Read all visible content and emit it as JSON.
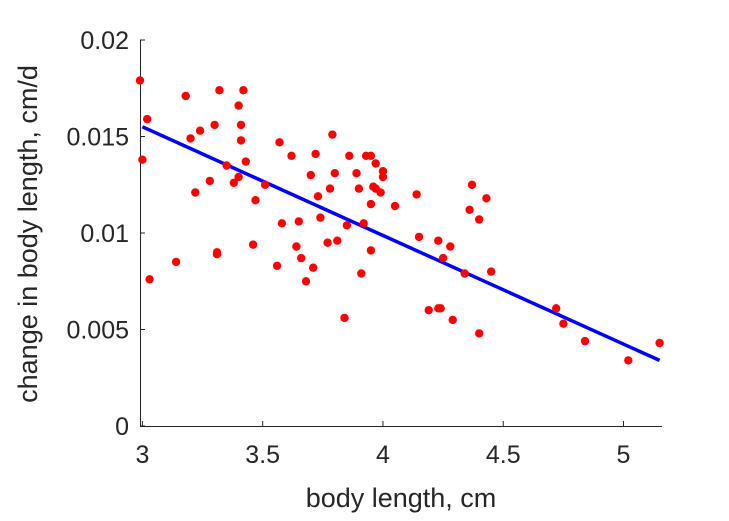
{
  "chart_data": {
    "type": "scatter",
    "title": "",
    "xlabel": "body length, cm",
    "ylabel": "change in body length, cm/d",
    "xlim": [
      2.99,
      5.16
    ],
    "ylim": [
      0,
      0.02
    ],
    "xticks": [
      3,
      3.5,
      4,
      4.5,
      5
    ],
    "xtick_labels": [
      "3",
      "3.5",
      "4",
      "4.5",
      "5"
    ],
    "yticks": [
      0,
      0.005,
      0.01,
      0.015,
      0.02
    ],
    "ytick_labels": [
      "0",
      "0.005",
      "0.01",
      "0.015",
      "0.02"
    ],
    "grid": false,
    "legend": "none",
    "series": [
      {
        "kind": "scatter",
        "color": "#ff0000",
        "points": [
          [
            2.99,
            0.0179
          ],
          [
            3.0,
            0.0138
          ],
          [
            3.02,
            0.0159
          ],
          [
            3.03,
            0.0076
          ],
          [
            3.14,
            0.0085
          ],
          [
            3.18,
            0.0171
          ],
          [
            3.2,
            0.0149
          ],
          [
            3.22,
            0.0121
          ],
          [
            3.24,
            0.0153
          ],
          [
            3.28,
            0.0127
          ],
          [
            3.3,
            0.0156
          ],
          [
            3.31,
            0.009
          ],
          [
            3.31,
            0.0089
          ],
          [
            3.32,
            0.0174
          ],
          [
            3.35,
            0.0135
          ],
          [
            3.38,
            0.0126
          ],
          [
            3.4,
            0.0166
          ],
          [
            3.4,
            0.0129
          ],
          [
            3.41,
            0.0156
          ],
          [
            3.41,
            0.0148
          ],
          [
            3.42,
            0.0174
          ],
          [
            3.43,
            0.0137
          ],
          [
            3.46,
            0.0094
          ],
          [
            3.47,
            0.0117
          ],
          [
            3.51,
            0.0125
          ],
          [
            3.56,
            0.0083
          ],
          [
            3.57,
            0.0147
          ],
          [
            3.58,
            0.0105
          ],
          [
            3.62,
            0.014
          ],
          [
            3.64,
            0.0093
          ],
          [
            3.65,
            0.0106
          ],
          [
            3.66,
            0.0087
          ],
          [
            3.68,
            0.0075
          ],
          [
            3.7,
            0.013
          ],
          [
            3.71,
            0.0082
          ],
          [
            3.72,
            0.0141
          ],
          [
            3.73,
            0.0119
          ],
          [
            3.74,
            0.0108
          ],
          [
            3.77,
            0.0095
          ],
          [
            3.78,
            0.0123
          ],
          [
            3.79,
            0.0151
          ],
          [
            3.8,
            0.0131
          ],
          [
            3.81,
            0.0096
          ],
          [
            3.84,
            0.0056
          ],
          [
            3.85,
            0.0104
          ],
          [
            3.86,
            0.014
          ],
          [
            3.89,
            0.0131
          ],
          [
            3.9,
            0.0123
          ],
          [
            3.91,
            0.0079
          ],
          [
            3.92,
            0.0105
          ],
          [
            3.93,
            0.014
          ],
          [
            3.95,
            0.014
          ],
          [
            3.95,
            0.0115
          ],
          [
            3.95,
            0.0091
          ],
          [
            3.96,
            0.0124
          ],
          [
            3.97,
            0.0136
          ],
          [
            3.97,
            0.0123
          ],
          [
            3.99,
            0.0121
          ],
          [
            4.0,
            0.0132
          ],
          [
            4.0,
            0.0129
          ],
          [
            4.05,
            0.0114
          ],
          [
            4.14,
            0.012
          ],
          [
            4.15,
            0.0098
          ],
          [
            4.19,
            0.006
          ],
          [
            4.23,
            0.0096
          ],
          [
            4.23,
            0.0061
          ],
          [
            4.24,
            0.0061
          ],
          [
            4.25,
            0.0087
          ],
          [
            4.28,
            0.0093
          ],
          [
            4.29,
            0.0055
          ],
          [
            4.34,
            0.0079
          ],
          [
            4.36,
            0.0112
          ],
          [
            4.37,
            0.0125
          ],
          [
            4.4,
            0.0048
          ],
          [
            4.4,
            0.0107
          ],
          [
            4.43,
            0.0118
          ],
          [
            4.45,
            0.008
          ],
          [
            4.72,
            0.0061
          ],
          [
            4.75,
            0.0053
          ],
          [
            4.84,
            0.0044
          ],
          [
            5.02,
            0.0034
          ],
          [
            5.15,
            0.0043
          ]
        ]
      },
      {
        "kind": "line",
        "color": "#0000ff",
        "points": [
          [
            3.0,
            0.0155
          ],
          [
            5.15,
            0.0034
          ]
        ]
      }
    ]
  }
}
